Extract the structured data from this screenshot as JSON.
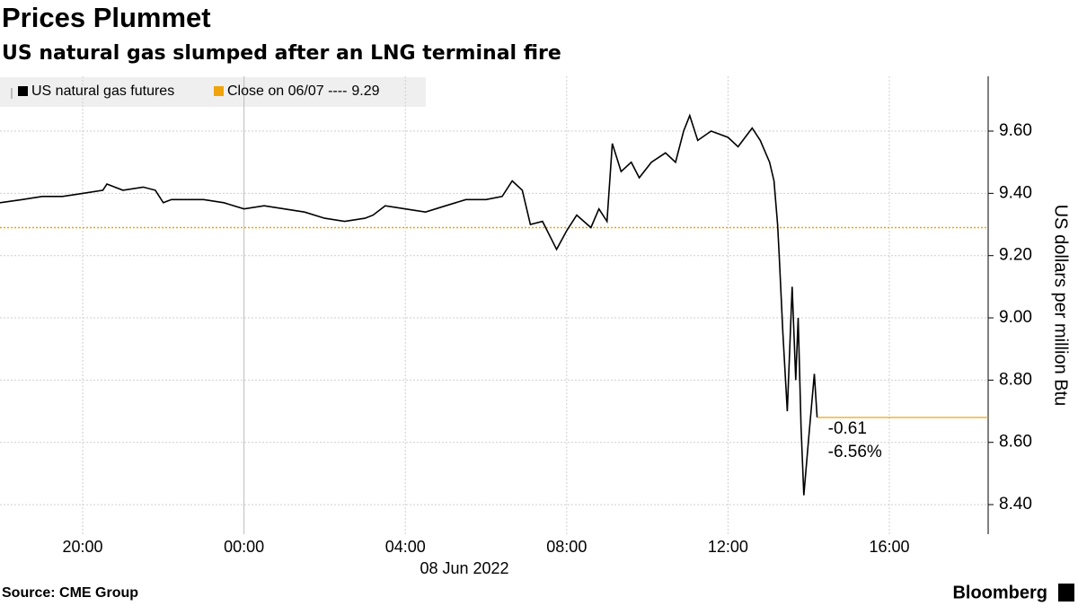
{
  "chart_data": {
    "type": "line",
    "title": "Prices Plummet",
    "subtitle": "US natural gas slumped after an LNG terminal fire",
    "y_label": "US dollars per million Btu",
    "date_label": "08 Jun 2022",
    "source": "Source: CME Group",
    "brand": "Bloomberg",
    "grid": true,
    "xlim": [
      -6.05,
      18.45
    ],
    "xticks": [
      {
        "value": -4,
        "label": "20:00"
      },
      {
        "value": 0,
        "label": "00:00"
      },
      {
        "value": 4,
        "label": "04:00"
      },
      {
        "value": 8,
        "label": "08:00"
      },
      {
        "value": 12,
        "label": "12:00"
      },
      {
        "value": 16,
        "label": "16:00"
      }
    ],
    "ylim": [
      8.305,
      9.776
    ],
    "yticks": [
      {
        "value": 8.4,
        "label": "8.40"
      },
      {
        "value": 8.6,
        "label": "8.60"
      },
      {
        "value": 8.8,
        "label": "8.80"
      },
      {
        "value": 9.0,
        "label": "9.00"
      },
      {
        "value": 9.2,
        "label": "9.20"
      },
      {
        "value": 9.4,
        "label": "9.40"
      },
      {
        "value": 9.6,
        "label": "9.60"
      }
    ],
    "series": [
      {
        "name": "US natural gas futures",
        "color": "#000000",
        "x": [
          -6.05,
          -5.5,
          -5,
          -4.5,
          -4,
          -3.5,
          -3.4,
          -3,
          -2.5,
          -2.2,
          -2,
          -1.8,
          -1.5,
          -1,
          -0.5,
          0,
          0.5,
          1,
          1.5,
          2,
          2.5,
          3,
          3.2,
          3.5,
          4,
          4.5,
          5,
          5.5,
          6,
          6.4,
          6.65,
          6.9,
          7.1,
          7.4,
          7.75,
          8.0,
          8.25,
          8.6,
          8.8,
          9.0,
          9.13,
          9.35,
          9.6,
          9.8,
          10.1,
          10.45,
          10.7,
          10.9,
          11.05,
          11.25,
          11.58,
          12.0,
          12.25,
          12.6,
          12.8,
          13.03,
          13.14,
          13.23,
          13.27,
          13.36,
          13.47,
          13.59,
          13.68,
          13.74,
          13.81,
          13.88,
          13.99,
          14.14,
          14.21
        ],
        "values": [
          9.37,
          9.38,
          9.39,
          9.39,
          9.4,
          9.41,
          9.43,
          9.41,
          9.42,
          9.41,
          9.37,
          9.38,
          9.38,
          9.38,
          9.37,
          9.35,
          9.36,
          9.35,
          9.34,
          9.32,
          9.31,
          9.32,
          9.33,
          9.36,
          9.35,
          9.34,
          9.36,
          9.38,
          9.38,
          9.39,
          9.44,
          9.41,
          9.3,
          9.31,
          9.22,
          9.28,
          9.33,
          9.29,
          9.35,
          9.31,
          9.56,
          9.47,
          9.5,
          9.45,
          9.5,
          9.53,
          9.5,
          9.6,
          9.65,
          9.57,
          9.6,
          9.58,
          9.55,
          9.61,
          9.57,
          9.5,
          9.44,
          9.3,
          9.2,
          8.95,
          8.7,
          9.1,
          8.8,
          9.0,
          8.65,
          8.43,
          8.6,
          8.82,
          8.68
        ]
      }
    ],
    "reference": {
      "label": "Close on 06/07 ----",
      "value": 9.29,
      "color": "#f0a30a"
    },
    "annotations": [
      "-0.61",
      "-6.56%"
    ]
  }
}
